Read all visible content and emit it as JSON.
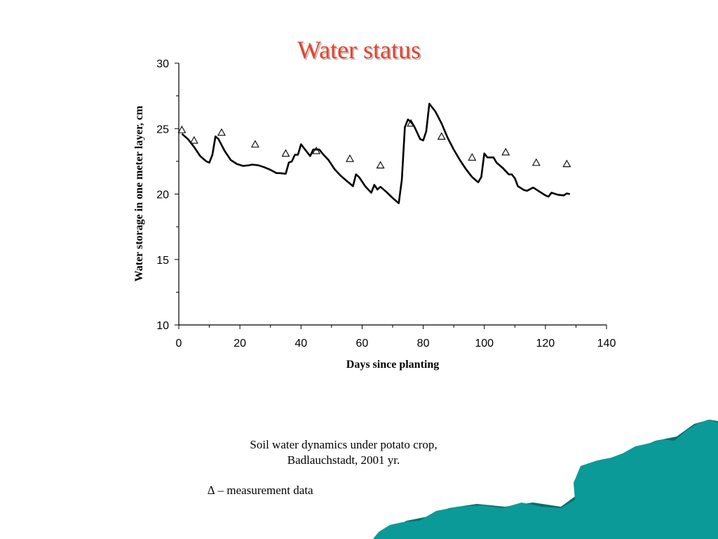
{
  "slide": {
    "title": "Water status",
    "caption_line1": "Soil water dynamics under potato crop,",
    "caption_line2": "Badlauchstadt, 2001 yr.",
    "legend_note": "∆ – measurement data"
  },
  "colors": {
    "title": "#e8402a",
    "decor_teal": "#0b9a98",
    "decor_shadow": "#06706e"
  },
  "chart_data": {
    "type": "line",
    "title": "",
    "xlabel": "Days since planting",
    "ylabel": "Water storage in one meter layer, cm",
    "xlim": [
      0,
      140
    ],
    "ylim": [
      10,
      30
    ],
    "xticks": [
      0,
      20,
      40,
      60,
      80,
      100,
      120,
      140
    ],
    "yticks": [
      10,
      15,
      20,
      25,
      30
    ],
    "grid": false,
    "series": [
      {
        "kind": "line",
        "color": "#000000",
        "points": [
          [
            1,
            24.6
          ],
          [
            3,
            24.2
          ],
          [
            5,
            23.6
          ],
          [
            7,
            22.9
          ],
          [
            9,
            22.5
          ],
          [
            10,
            22.4
          ],
          [
            11,
            23.0
          ],
          [
            12,
            24.4
          ],
          [
            13,
            24.2
          ],
          [
            15,
            23.3
          ],
          [
            17,
            22.6
          ],
          [
            19,
            22.3
          ],
          [
            21,
            22.15
          ],
          [
            23,
            22.2
          ],
          [
            24,
            22.25
          ],
          [
            26,
            22.2
          ],
          [
            28,
            22.05
          ],
          [
            30,
            21.85
          ],
          [
            32,
            21.6
          ],
          [
            33,
            21.6
          ],
          [
            35,
            21.55
          ],
          [
            36,
            22.4
          ],
          [
            37,
            22.5
          ],
          [
            38,
            23.0
          ],
          [
            39,
            23.0
          ],
          [
            40,
            23.8
          ],
          [
            41,
            23.5
          ],
          [
            43,
            22.9
          ],
          [
            44,
            23.4
          ],
          [
            46,
            23.4
          ],
          [
            47,
            23.1
          ],
          [
            49,
            22.6
          ],
          [
            51,
            21.9
          ],
          [
            53,
            21.4
          ],
          [
            55,
            21.0
          ],
          [
            57,
            20.6
          ],
          [
            58,
            21.5
          ],
          [
            59,
            21.3
          ],
          [
            61,
            20.6
          ],
          [
            63,
            20.1
          ],
          [
            64,
            20.7
          ],
          [
            65,
            20.35
          ],
          [
            66,
            20.55
          ],
          [
            68,
            20.15
          ],
          [
            70,
            19.7
          ],
          [
            72,
            19.3
          ],
          [
            73,
            21.1
          ],
          [
            74,
            25.1
          ],
          [
            75,
            25.7
          ],
          [
            76,
            25.5
          ],
          [
            77,
            25.2
          ],
          [
            79,
            24.2
          ],
          [
            80,
            24.1
          ],
          [
            81,
            24.8
          ],
          [
            82,
            26.9
          ],
          [
            84,
            26.3
          ],
          [
            86,
            25.4
          ],
          [
            88,
            24.3
          ],
          [
            90,
            23.4
          ],
          [
            92,
            22.6
          ],
          [
            94,
            21.9
          ],
          [
            96,
            21.3
          ],
          [
            98,
            20.9
          ],
          [
            99,
            21.3
          ],
          [
            100,
            23.1
          ],
          [
            101,
            22.8
          ],
          [
            103,
            22.8
          ],
          [
            104,
            22.4
          ],
          [
            106,
            22.0
          ],
          [
            108,
            21.5
          ],
          [
            109,
            21.5
          ],
          [
            110,
            21.2
          ],
          [
            111,
            20.6
          ],
          [
            113,
            20.3
          ],
          [
            114,
            20.25
          ],
          [
            116,
            20.5
          ],
          [
            118,
            20.2
          ],
          [
            120,
            19.9
          ],
          [
            121,
            19.8
          ],
          [
            122,
            20.1
          ],
          [
            124,
            19.95
          ],
          [
            126,
            19.9
          ],
          [
            127,
            20.05
          ],
          [
            128,
            20.0
          ]
        ]
      },
      {
        "kind": "scatter",
        "marker": "triangle-open",
        "color": "#000000",
        "points": [
          [
            1,
            24.9
          ],
          [
            5,
            24.1
          ],
          [
            14,
            24.7
          ],
          [
            25,
            23.8
          ],
          [
            35,
            23.1
          ],
          [
            45,
            23.3
          ],
          [
            56,
            22.7
          ],
          [
            66,
            22.2
          ],
          [
            76,
            25.4
          ],
          [
            86,
            24.4
          ],
          [
            96,
            22.8
          ],
          [
            107,
            23.2
          ],
          [
            117,
            22.4
          ],
          [
            127,
            22.3
          ]
        ]
      }
    ]
  }
}
